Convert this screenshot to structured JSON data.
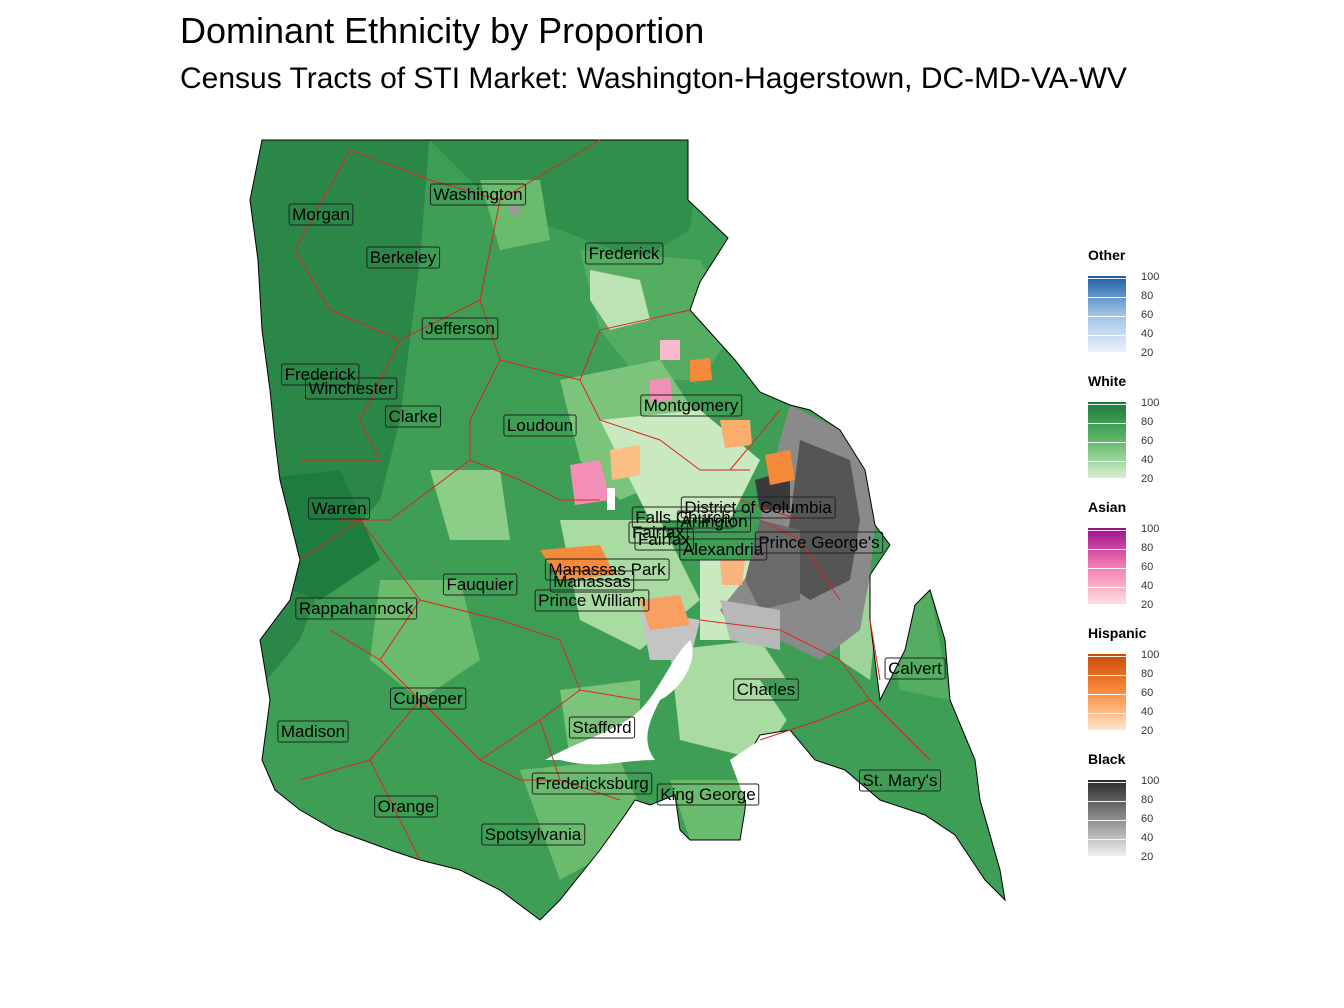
{
  "title": "Dominant Ethnicity by Proportion",
  "subtitle": "Census Tracts of STI Market: Washington-Hagerstown, DC-MD-VA-WV",
  "colors": {
    "background": "#ffffff",
    "county_border": "#e0241f",
    "white_dark": "#1a7a3c",
    "white_mid": "#3e9e55",
    "white_light": "#a6d8a2",
    "black_dark": "#4a4a4a",
    "black_mid": "#808080",
    "black_light": "#c4c4c4",
    "hispanic": "#f58a3a",
    "asian": "#f48fb8"
  },
  "counties": [
    "Washington",
    "Morgan",
    "Berkeley",
    "Frederick",
    "Jefferson",
    "Frederick",
    "Winchester",
    "Clarke",
    "Loudoun",
    "Montgomery",
    "Warren",
    "District of Columbia",
    "Falls Church",
    "Arlington",
    "Fairfax",
    "Fairfax",
    "Alexandria",
    "Prince George's",
    "Manassas Park",
    "Manassas",
    "Fauquier",
    "Rappahannock",
    "Prince William",
    "Calvert",
    "Charles",
    "Culpeper",
    "Stafford",
    "Madison",
    "Fredericksburg",
    "King George",
    "St. Mary's",
    "Orange",
    "Spotsylvania"
  ],
  "legend": [
    {
      "name": "Other",
      "ticks": [
        "100",
        "80",
        "60",
        "40",
        "20"
      ],
      "colors": [
        "#1e5ea8",
        "#9dc3e6",
        "#eaf2fb"
      ]
    },
    {
      "name": "White",
      "ticks": [
        "100",
        "80",
        "60",
        "40",
        "20"
      ],
      "colors": [
        "#1a7a3c",
        "#5cb766",
        "#d8f0d2"
      ]
    },
    {
      "name": "Asian",
      "ticks": [
        "100",
        "80",
        "60",
        "40",
        "20"
      ],
      "colors": [
        "#9c0d8e",
        "#f37bb2",
        "#fde0dd"
      ]
    },
    {
      "name": "Hispanic",
      "ticks": [
        "100",
        "80",
        "60",
        "40",
        "20"
      ],
      "colors": [
        "#c84a05",
        "#fb8d3d",
        "#fee6ce"
      ]
    },
    {
      "name": "Black",
      "ticks": [
        "100",
        "80",
        "60",
        "40",
        "20"
      ],
      "colors": [
        "#2a2a2a",
        "#8a8a8a",
        "#f0f0f0"
      ]
    }
  ]
}
